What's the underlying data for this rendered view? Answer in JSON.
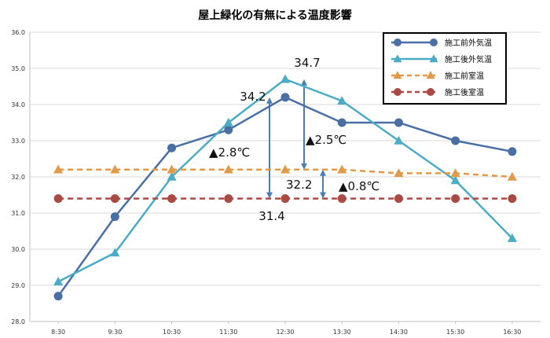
{
  "chart_data": {
    "type": "line",
    "title": "屋上緑化の有無による温度影響",
    "xlabel": "",
    "ylabel": "",
    "categories": [
      "8:30",
      "9:30",
      "10:30",
      "11:30",
      "12:30",
      "13:30",
      "14:30",
      "15:30",
      "16:30"
    ],
    "ylim": [
      28.0,
      36.0
    ],
    "yticks": [
      "28.0",
      "29.0",
      "30.0",
      "31.0",
      "32.0",
      "33.0",
      "34.0",
      "35.0",
      "36.0"
    ],
    "grid": true,
    "legend_position": "top-right",
    "series": [
      {
        "name": "施工前外気温",
        "values": [
          28.7,
          30.9,
          32.8,
          33.3,
          34.2,
          33.5,
          33.5,
          33.0,
          32.7
        ],
        "color": "#4a6fa5",
        "marker": "circle",
        "dashed": false
      },
      {
        "name": "施工後外気温",
        "values": [
          29.1,
          29.9,
          32.0,
          33.5,
          34.7,
          34.1,
          33.0,
          31.9,
          30.3
        ],
        "color": "#4bacc6",
        "marker": "triangle",
        "dashed": false
      },
      {
        "name": "施工前室温",
        "values": [
          32.2,
          32.2,
          32.2,
          32.2,
          32.2,
          32.2,
          32.1,
          32.1,
          32.0
        ],
        "color": "#e09a4a",
        "marker": "triangle",
        "dashed": true
      },
      {
        "name": "施工後室温",
        "values": [
          31.4,
          31.4,
          31.4,
          31.4,
          31.4,
          31.4,
          31.4,
          31.4,
          31.4
        ],
        "color": "#a94a44",
        "marker": "circle",
        "dashed": true
      }
    ],
    "annotations": [
      {
        "text": "34.7"
      },
      {
        "text": "34.2"
      },
      {
        "text": "▲2.8℃"
      },
      {
        "text": "▲2.5℃"
      },
      {
        "text": "32.2"
      },
      {
        "text": "▲0.8℃"
      },
      {
        "text": "31.4"
      }
    ],
    "arrows": [
      {
        "x": "12:30",
        "from": 31.4,
        "to": 34.2
      },
      {
        "x": "12:30",
        "from": 32.2,
        "to": 34.7
      },
      {
        "x": "12:30",
        "from": 31.4,
        "to": 32.2
      }
    ],
    "arrow_color": "#4a7fb0"
  }
}
